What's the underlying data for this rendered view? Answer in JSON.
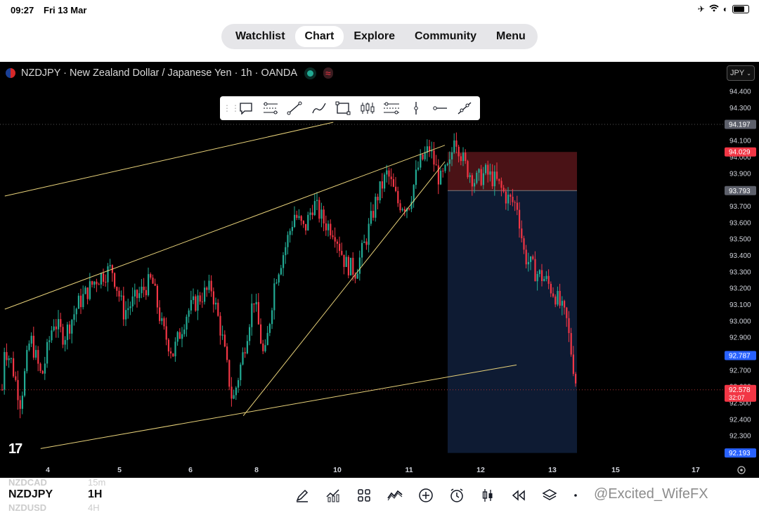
{
  "status_bar": {
    "time": "09:27",
    "date": "Fri 13 Mar"
  },
  "nav": {
    "tabs": [
      {
        "label": "Watchlist",
        "active": false
      },
      {
        "label": "Chart",
        "active": true
      },
      {
        "label": "Explore",
        "active": false
      },
      {
        "label": "Community",
        "active": false
      },
      {
        "label": "Menu",
        "active": false
      }
    ]
  },
  "chart_header": {
    "title": "NZDJPY · New Zealand Dollar / Japanese Yen · 1h · OANDA",
    "currency": "JPY"
  },
  "drawing_toolbar": {
    "tools": [
      "note-icon",
      "parallel-channel-icon",
      "trend-line-icon",
      "brush-icon",
      "rectangle-icon",
      "candles-icon",
      "pitchfork-icon",
      "vertical-line-icon",
      "horizontal-ray-icon",
      "extended-line-icon"
    ]
  },
  "chart_data": {
    "type": "candlestick",
    "symbol": "NZDJPY",
    "interval": "1h",
    "y_ticks": [
      "94.400",
      "94.300",
      "94.200",
      "94.100",
      "94.000",
      "93.900",
      "93.800",
      "93.700",
      "93.600",
      "93.500",
      "93.400",
      "93.300",
      "93.200",
      "93.100",
      "93.000",
      "92.900",
      "92.800",
      "92.700",
      "92.600",
      "92.500",
      "92.400",
      "92.300"
    ],
    "x_ticks": [
      "4",
      "5",
      "6",
      "8",
      "10",
      "11",
      "12",
      "13",
      "15",
      "17"
    ],
    "ylim": [
      92.17,
      94.45
    ],
    "price_labels": [
      {
        "text": "94.197",
        "value": 94.197,
        "color": "#5d606b"
      },
      {
        "text": "94.029",
        "value": 94.029,
        "color": "#f23645"
      },
      {
        "text": "93.793",
        "value": 93.793,
        "color": "#5d606b"
      },
      {
        "text": "92.787",
        "value": 92.787,
        "color": "#2962ff"
      },
      {
        "text": "92.578",
        "value": 92.578,
        "color": "#f23645",
        "countdown": "32:07"
      },
      {
        "text": "92.193",
        "value": 92.193,
        "color": "#2962ff"
      }
    ],
    "short_position": {
      "entry": 93.793,
      "stop": 94.029,
      "target": 92.193
    },
    "trend_lines": [
      {
        "from": [
          "3.4",
          93.76
        ],
        "to": [
          "9.9",
          94.21
        ]
      },
      {
        "from": [
          "3.4",
          93.07
        ],
        "to": [
          "11.5",
          94.07
        ]
      },
      {
        "from": [
          "7.6",
          92.42
        ],
        "to": [
          "11.5",
          93.97
        ]
      },
      {
        "from": [
          "3.9",
          92.22
        ],
        "to": [
          "12.5",
          92.73
        ]
      }
    ],
    "grid": false
  },
  "tv_logo": "17",
  "bottom_bar": {
    "symbol": "NZDJPY",
    "symbol_prev": "NZDCAD",
    "symbol_next": "NZDUSD",
    "interval": "1H",
    "interval_prev": "15m",
    "interval_next": "4H",
    "watermark": "@Excited_WifeFX"
  }
}
